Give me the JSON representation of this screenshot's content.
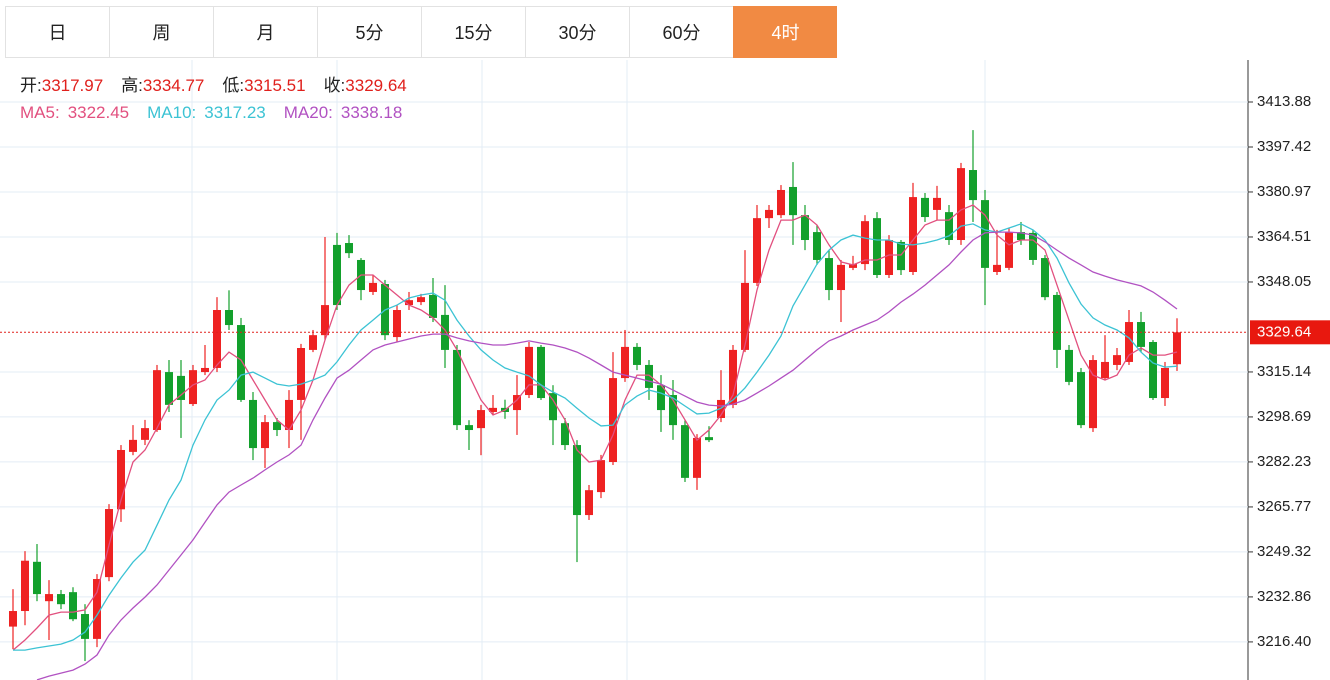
{
  "tabs": [
    "日",
    "周",
    "月",
    "5分",
    "15分",
    "30分",
    "60分",
    "4时"
  ],
  "active_tab": 7,
  "chart_data": {
    "type": "candlestick",
    "ohlc_labels": [
      "开:",
      "高:",
      "低:",
      "收:"
    ],
    "up_color": "#ee2222",
    "down_color": "#13a02c",
    "open": [
      3222.0,
      3227.7,
      3245.7,
      3231.3,
      3233.9,
      3234.6,
      3226.6,
      3217.5,
      3240.1,
      3264.9,
      3285.9,
      3290.3,
      3293.9,
      3315.1,
      3313.7,
      3303.4,
      3315.1,
      3316.6,
      3337.8,
      3332.3,
      3304.9,
      3287.3,
      3296.8,
      3293.9,
      3304.9,
      3323.2,
      3328.6,
      3361.6,
      3362.3,
      3356.1,
      3344.4,
      3347.3,
      3327.9,
      3339.6,
      3340.7,
      3343.3,
      3336.0,
      3323.2,
      3295.7,
      3294.6,
      3300.5,
      3302.0,
      3301.2,
      3306.7,
      3324.3,
      3307.4,
      3296.4,
      3288.4,
      3262.8,
      3271.2,
      3282.2,
      3312.9,
      3324.3,
      3317.7,
      3310.3,
      3306.7,
      3295.7,
      3276.4,
      3291.3,
      3298.3,
      3303.1,
      3323.2,
      3347.7,
      3371.4,
      3372.5,
      3382.8,
      3372.5,
      3366.3,
      3356.8,
      3345.1,
      3353.2,
      3354.6,
      3371.4,
      3350.6,
      3362.7,
      3351.7,
      3378.8,
      3374.4,
      3373.6,
      3363.4,
      3389.0,
      3378.0,
      3351.7,
      3353.2,
      3366.3,
      3366.0,
      3356.8,
      3343.3,
      3323.2,
      3315.1,
      3294.6,
      3312.9,
      3317.7,
      3318.8,
      3333.4,
      3326.1,
      3305.6,
      3317.97
    ],
    "high": [
      3235.7,
      3249.6,
      3252.2,
      3239.0,
      3235.4,
      3236.4,
      3230.2,
      3241.2,
      3266.8,
      3288.4,
      3295.7,
      3297.6,
      3317.7,
      3319.5,
      3319.5,
      3317.7,
      3325.0,
      3342.5,
      3345.0,
      3334.9,
      3307.8,
      3299.4,
      3298.3,
      3308.5,
      3325.4,
      3330.5,
      3364.5,
      3366.0,
      3365.2,
      3356.8,
      3350.6,
      3348.8,
      3339.6,
      3344.4,
      3343.7,
      3349.5,
      3346.9,
      3325.0,
      3297.5,
      3303.1,
      3306.7,
      3305.0,
      3314.0,
      3326.1,
      3325.0,
      3310.3,
      3298.3,
      3290.2,
      3273.8,
      3284.8,
      3322.4,
      3330.5,
      3325.7,
      3319.5,
      3314.0,
      3312.2,
      3297.5,
      3292.4,
      3295.3,
      3315.8,
      3325.0,
      3359.7,
      3376.2,
      3376.2,
      3383.5,
      3391.9,
      3376.2,
      3368.9,
      3359.7,
      3356.1,
      3357.6,
      3372.5,
      3373.6,
      3365.2,
      3363.4,
      3384.3,
      3380.6,
      3383.2,
      3376.2,
      3391.6,
      3403.6,
      3381.7,
      3367.1,
      3367.8,
      3370.0,
      3367.1,
      3357.9,
      3344.4,
      3325.0,
      3316.6,
      3321.3,
      3328.6,
      3323.9,
      3337.8,
      3337.1,
      3326.8,
      3318.8,
      3334.77
    ],
    "low": [
      3213.8,
      3222.5,
      3231.3,
      3217.1,
      3228.4,
      3224.0,
      3209.4,
      3214.5,
      3238.6,
      3260.3,
      3284.7,
      3288.4,
      3293.2,
      3300.5,
      3291.0,
      3302.7,
      3314.0,
      3315.1,
      3330.5,
      3304.2,
      3282.9,
      3280.0,
      3291.7,
      3287.3,
      3290.3,
      3322.4,
      3326.8,
      3337.8,
      3356.8,
      3341.4,
      3343.3,
      3326.8,
      3326.1,
      3337.8,
      3339.6,
      3333.4,
      3316.6,
      3293.9,
      3286.6,
      3284.7,
      3299.4,
      3298.0,
      3292.1,
      3305.6,
      3304.9,
      3288.4,
      3286.6,
      3245.6,
      3261.0,
      3269.0,
      3281.1,
      3311.5,
      3315.8,
      3304.9,
      3293.2,
      3290.3,
      3274.9,
      3272.0,
      3289.5,
      3296.8,
      3301.9,
      3322.4,
      3346.6,
      3367.8,
      3371.4,
      3361.6,
      3359.7,
      3354.3,
      3341.4,
      3333.4,
      3352.4,
      3352.4,
      3349.5,
      3349.5,
      3350.6,
      3350.6,
      3370.0,
      3370.7,
      3361.6,
      3361.6,
      3370.0,
      3339.6,
      3350.6,
      3352.4,
      3361.6,
      3354.3,
      3341.4,
      3316.6,
      3310.3,
      3294.6,
      3293.2,
      3312.2,
      3315.8,
      3317.7,
      3322.4,
      3304.9,
      3302.7,
      3315.51
    ],
    "close": [
      3227.7,
      3246.1,
      3233.9,
      3233.9,
      3230.2,
      3224.7,
      3217.5,
      3239.4,
      3265.0,
      3286.6,
      3290.3,
      3294.6,
      3315.8,
      3303.1,
      3304.9,
      3315.8,
      3316.6,
      3337.8,
      3332.3,
      3304.9,
      3287.3,
      3296.8,
      3293.9,
      3304.9,
      3323.9,
      3328.6,
      3339.6,
      3339.6,
      3358.6,
      3345.1,
      3347.7,
      3328.6,
      3337.8,
      3341.4,
      3342.5,
      3334.9,
      3323.2,
      3295.7,
      3293.9,
      3301.2,
      3302.0,
      3300.5,
      3306.7,
      3324.3,
      3305.6,
      3297.5,
      3288.4,
      3262.8,
      3271.9,
      3282.9,
      3312.9,
      3324.3,
      3317.7,
      3309.3,
      3301.2,
      3295.7,
      3276.4,
      3291.0,
      3290.2,
      3304.9,
      3323.2,
      3347.7,
      3371.4,
      3374.4,
      3381.7,
      3372.5,
      3363.4,
      3356.1,
      3345.1,
      3354.3,
      3354.6,
      3370.3,
      3350.6,
      3363.4,
      3352.4,
      3379.1,
      3371.8,
      3378.8,
      3363.4,
      3389.7,
      3378.0,
      3353.2,
      3354.3,
      3366.3,
      3363.4,
      3356.1,
      3342.5,
      3323.2,
      3311.5,
      3295.7,
      3319.5,
      3318.8,
      3321.3,
      3333.4,
      3324.3,
      3305.6,
      3316.6,
      3329.64
    ],
    "series": [
      {
        "name": "MA5:",
        "color": "#e2507f",
        "values": [
          3213.4,
          3217.1,
          3221.5,
          3226.2,
          3227.3,
          3227.3,
          3228.1,
          3234.6,
          3251.8,
          3268.3,
          3282.2,
          3286.6,
          3294.6,
          3303.1,
          3306.7,
          3310.4,
          3312.2,
          3317.7,
          3322.4,
          3319.5,
          3312.2,
          3304.9,
          3297.6,
          3293.9,
          3301.2,
          3312.2,
          3326.8,
          3339.6,
          3346.9,
          3350.6,
          3350.6,
          3346.9,
          3343.3,
          3339.6,
          3337.8,
          3334.9,
          3330.5,
          3323.2,
          3314.0,
          3304.9,
          3299.4,
          3301.2,
          3304.9,
          3310.4,
          3310.4,
          3304.9,
          3297.6,
          3286.6,
          3282.2,
          3282.9,
          3292.1,
          3304.9,
          3314.0,
          3314.0,
          3310.4,
          3304.9,
          3297.6,
          3290.2,
          3293.9,
          3299.4,
          3306.7,
          3325.0,
          3345.1,
          3359.7,
          3370.7,
          3370.7,
          3372.5,
          3368.9,
          3361.6,
          3355.4,
          3354.3,
          3356.1,
          3356.1,
          3357.9,
          3357.9,
          3363.4,
          3368.9,
          3370.7,
          3370.7,
          3374.4,
          3376.2,
          3372.5,
          3365.2,
          3361.6,
          3363.4,
          3363.4,
          3359.7,
          3346.9,
          3334.1,
          3321.3,
          3314.0,
          3312.2,
          3314.0,
          3321.3,
          3323.9,
          3321.3,
          3321.3,
          3322.45
        ]
      },
      {
        "name": "MA10:",
        "color": "#3cc3d4",
        "values": [
          3213.4,
          3213.4,
          3214.2,
          3214.9,
          3215.6,
          3217.1,
          3220.0,
          3226.2,
          3233.5,
          3239.8,
          3245.6,
          3250.0,
          3259.1,
          3268.3,
          3275.6,
          3288.4,
          3297.6,
          3304.9,
          3308.5,
          3314.0,
          3315.1,
          3312.9,
          3310.7,
          3310.0,
          3310.7,
          3312.2,
          3314.0,
          3318.8,
          3325.0,
          3330.5,
          3334.1,
          3337.8,
          3339.6,
          3342.2,
          3343.3,
          3344.0,
          3341.4,
          3334.1,
          3328.3,
          3323.2,
          3319.5,
          3316.6,
          3315.1,
          3313.7,
          3310.4,
          3307.8,
          3305.6,
          3301.9,
          3298.3,
          3295.4,
          3295.7,
          3303.1,
          3306.3,
          3308.5,
          3307.4,
          3305.6,
          3302.7,
          3299.8,
          3300.1,
          3301.9,
          3304.9,
          3309.3,
          3315.1,
          3321.3,
          3328.3,
          3339.3,
          3346.9,
          3354.6,
          3359.7,
          3363.4,
          3365.2,
          3364.1,
          3363.4,
          3363.4,
          3361.9,
          3361.6,
          3362.3,
          3363.4,
          3364.9,
          3368.5,
          3369.3,
          3367.1,
          3366.3,
          3367.8,
          3369.3,
          3367.1,
          3363.4,
          3356.8,
          3347.7,
          3340.0,
          3334.9,
          3332.3,
          3330.5,
          3327.6,
          3322.4,
          3318.4,
          3316.9,
          3317.23
        ]
      },
      {
        "name": "MA20:",
        "color": "#b152c2",
        "values": [
          null,
          null,
          3202.5,
          3203.9,
          3205.0,
          3206.1,
          3208.3,
          3211.6,
          3218.9,
          3224.4,
          3228.8,
          3232.8,
          3237.2,
          3242.7,
          3248.2,
          3253.7,
          3260.2,
          3266.5,
          3271.2,
          3273.8,
          3276.3,
          3279.3,
          3282.2,
          3284.8,
          3288.4,
          3297.6,
          3305.6,
          3312.9,
          3315.8,
          3319.5,
          3323.2,
          3325.0,
          3326.1,
          3327.2,
          3328.3,
          3329.0,
          3329.0,
          3327.6,
          3326.5,
          3325.7,
          3325.0,
          3325.0,
          3325.7,
          3326.5,
          3325.7,
          3325.0,
          3323.9,
          3322.4,
          3320.2,
          3317.7,
          3315.1,
          3314.0,
          3312.9,
          3311.8,
          3310.7,
          3308.5,
          3306.3,
          3304.1,
          3303.0,
          3302.7,
          3303.4,
          3304.9,
          3307.4,
          3310.0,
          3312.9,
          3315.8,
          3319.5,
          3323.2,
          3326.5,
          3328.3,
          3330.5,
          3332.3,
          3334.1,
          3337.1,
          3340.7,
          3343.6,
          3346.9,
          3350.6,
          3354.3,
          3359.0,
          3363.4,
          3366.0,
          3366.3,
          3366.3,
          3366.0,
          3365.2,
          3362.7,
          3359.7,
          3356.8,
          3354.3,
          3351.7,
          3350.2,
          3348.8,
          3347.7,
          3346.6,
          3344.4,
          3341.4,
          3338.18
        ]
      }
    ],
    "ylim": [
      3202.47,
      3429.24
    ],
    "yticks": [
      3413.88,
      3397.42,
      3380.97,
      3364.51,
      3348.05,
      3315.14,
      3298.69,
      3282.23,
      3265.77,
      3249.32,
      3232.86,
      {
        "value": 3216.4,
        "label": "3216.40"
      }
    ],
    "grid": true,
    "last_price_line": true
  }
}
